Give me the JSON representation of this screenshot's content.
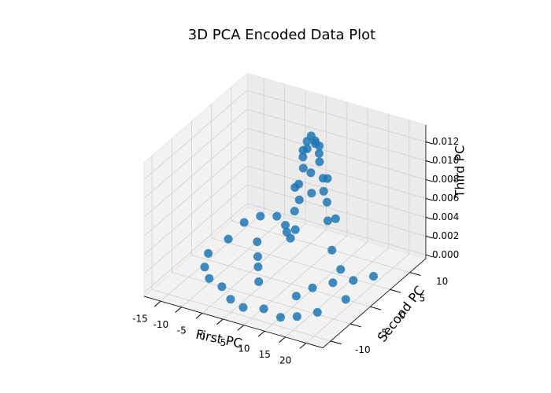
{
  "chart_data": {
    "type": "scatter3d",
    "title": "3D PCA Encoded Data Plot",
    "xlabel": "First PC",
    "ylabel": "Second PC",
    "zlabel": "Third PC",
    "color": "#1f77b4",
    "grid": true,
    "xlim": [
      -19,
      24
    ],
    "ylim": [
      -12,
      14
    ],
    "zlim": [
      -0.0004,
      0.0138
    ],
    "xticks": [
      -15,
      -10,
      -5,
      0,
      5,
      10,
      15,
      20
    ],
    "yticks": [
      -10,
      -5,
      0,
      5,
      10
    ],
    "zticks": [
      {
        "value": 0,
        "label": "0.000"
      },
      {
        "value": 0.002,
        "label": "0.002"
      },
      {
        "value": 0.004,
        "label": "0.004"
      },
      {
        "value": 0.006,
        "label": "0.006"
      },
      {
        "value": 0.008,
        "label": "0.008"
      },
      {
        "value": 0.01,
        "label": "0.010"
      },
      {
        "value": 0.012,
        "label": "0.012"
      }
    ],
    "x": [
      5,
      4,
      6,
      5,
      5,
      3,
      7,
      5,
      5,
      2,
      8,
      5,
      5,
      3,
      7,
      3,
      7,
      1,
      9,
      5,
      5,
      0,
      10,
      4,
      6,
      2,
      8,
      -14,
      -12,
      -9,
      -6,
      -14,
      -15,
      -13,
      -10,
      -6,
      -2,
      2,
      6,
      -5,
      -8,
      12,
      15,
      18,
      20,
      17,
      14,
      11,
      20,
      14,
      10,
      0,
      -3
    ],
    "y": [
      5,
      5,
      5,
      4,
      6,
      5,
      5,
      3,
      7,
      5,
      5,
      2,
      8,
      3,
      7,
      7,
      3,
      5,
      5,
      1,
      9,
      5,
      5,
      4,
      6,
      2,
      8,
      8,
      10,
      11,
      10,
      4,
      0,
      -3,
      -5,
      -6,
      -8,
      -9,
      -8,
      2,
      5,
      -2,
      0,
      2,
      -2,
      -6,
      -8,
      -9,
      5,
      3,
      -4,
      -3,
      0
    ],
    "z": [
      0.0135,
      0.0128,
      0.0128,
      0.0125,
      0.0126,
      0.011,
      0.011,
      0.0108,
      0.0109,
      0.008,
      0.008,
      0.0078,
      0.0079,
      0.0085,
      0.0085,
      0.0086,
      0.0084,
      0.005,
      0.005,
      0.005,
      0.005,
      0.002,
      0.002,
      0.0122,
      0.0122,
      0.004,
      0.004,
      0.0008,
      0.001,
      0.001,
      0.0008,
      0.0005,
      0.0003,
      0.0002,
      0.0001,
      0.0001,
      0,
      0,
      0,
      0.0005,
      0.0006,
      0.0008,
      0.001,
      0.0009,
      0.0006,
      0.0003,
      0.0002,
      0.0001,
      0.0005,
      0.0012,
      0.0004,
      0.0003,
      0.0004
    ]
  }
}
